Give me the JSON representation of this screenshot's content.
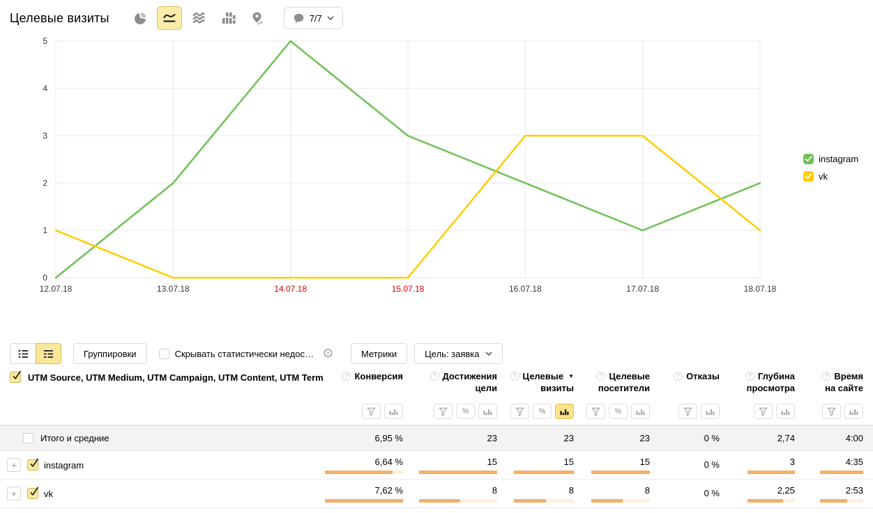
{
  "header": {
    "title": "Целевые визиты",
    "chart_types": [
      "pie",
      "line",
      "stacked-area",
      "columns",
      "map"
    ],
    "selected_chart_type": "line",
    "annotations_count": "7/7"
  },
  "icons": {
    "help": "?",
    "gear": "⚙",
    "sort_desc": "▼"
  },
  "chart_data": {
    "type": "line",
    "title": "Целевые визиты",
    "x": [
      "12.07.18",
      "13.07.18",
      "14.07.18",
      "15.07.18",
      "16.07.18",
      "17.07.18",
      "18.07.18"
    ],
    "weekend_indices": [
      2,
      3
    ],
    "series": [
      {
        "name": "instagram",
        "color": "#6ec255",
        "values": [
          0,
          2,
          5,
          3,
          2,
          1,
          2
        ]
      },
      {
        "name": "vk",
        "color": "#ffcc00",
        "values": [
          1,
          0,
          0,
          0,
          3,
          3,
          1
        ]
      }
    ],
    "ylim": [
      0,
      5
    ],
    "yticks": [
      0,
      1,
      2,
      3,
      4,
      5
    ],
    "grid": true,
    "legend_position": "right"
  },
  "legend": {
    "items": [
      {
        "label": "instagram",
        "color": "#6ec255",
        "checked": true
      },
      {
        "label": "vk",
        "color": "#ffcc00",
        "checked": true
      }
    ]
  },
  "table": {
    "toolbar": {
      "groupings_label": "Группировки",
      "hide_checkbox_label": "Скрывать статистически недос…",
      "hide_checkbox_checked": false,
      "metrics_label": "Метрики",
      "goal_label": "Цель: заявка"
    },
    "dimension_header": "UTM Source, UTM Medium, UTM Campaign, UTM Content, UTM Term",
    "columns": [
      {
        "line1": "Конверсия",
        "line2": "",
        "filters": [
          "filter",
          "bars"
        ],
        "active": null
      },
      {
        "line1": "Достижения",
        "line2": "цели",
        "filters": [
          "filter",
          "percent",
          "bars"
        ],
        "active": null
      },
      {
        "line1": "Целевые",
        "line2": "визиты",
        "sorted": "desc",
        "filters": [
          "filter",
          "percent",
          "bars"
        ],
        "active": "bars"
      },
      {
        "line1": "Целевые",
        "line2": "посетители",
        "filters": [
          "filter",
          "percent",
          "bars"
        ],
        "active": null
      },
      {
        "line1": "Отказы",
        "line2": "",
        "filters": [
          "filter",
          "bars"
        ],
        "active": null
      },
      {
        "line1": "Глубина",
        "line2": "просмотра",
        "filters": [
          "filter",
          "bars"
        ],
        "active": null
      },
      {
        "line1": "Время",
        "line2": "на сайте",
        "filters": [
          "filter",
          "bars"
        ],
        "active": null
      }
    ],
    "rows": [
      {
        "label": "Итого и средние",
        "totals": true,
        "checked": false,
        "cells": [
          {
            "text": "6,95 %"
          },
          {
            "text": "23"
          },
          {
            "text": "23"
          },
          {
            "text": "23"
          },
          {
            "text": "0 %"
          },
          {
            "text": "2,74"
          },
          {
            "text": "4:00"
          }
        ]
      },
      {
        "label": "instagram",
        "totals": false,
        "checked": true,
        "expandable": true,
        "cells": [
          {
            "text": "6,64 %",
            "bar": 0.87
          },
          {
            "text": "15",
            "bar": 1
          },
          {
            "text": "15",
            "bar": 1
          },
          {
            "text": "15",
            "bar": 1
          },
          {
            "text": "0 %"
          },
          {
            "text": "3",
            "bar": 1
          },
          {
            "text": "4:35",
            "bar": 1
          }
        ]
      },
      {
        "label": "vk",
        "totals": false,
        "checked": true,
        "expandable": true,
        "cells": [
          {
            "text": "7,62 %",
            "bar": 1
          },
          {
            "text": "8",
            "bar": 0.53
          },
          {
            "text": "8",
            "bar": 0.53
          },
          {
            "text": "8",
            "bar": 0.53
          },
          {
            "text": "0 %"
          },
          {
            "text": "2,25",
            "bar": 0.75
          },
          {
            "text": "2:53",
            "bar": 0.63
          }
        ]
      }
    ]
  }
}
